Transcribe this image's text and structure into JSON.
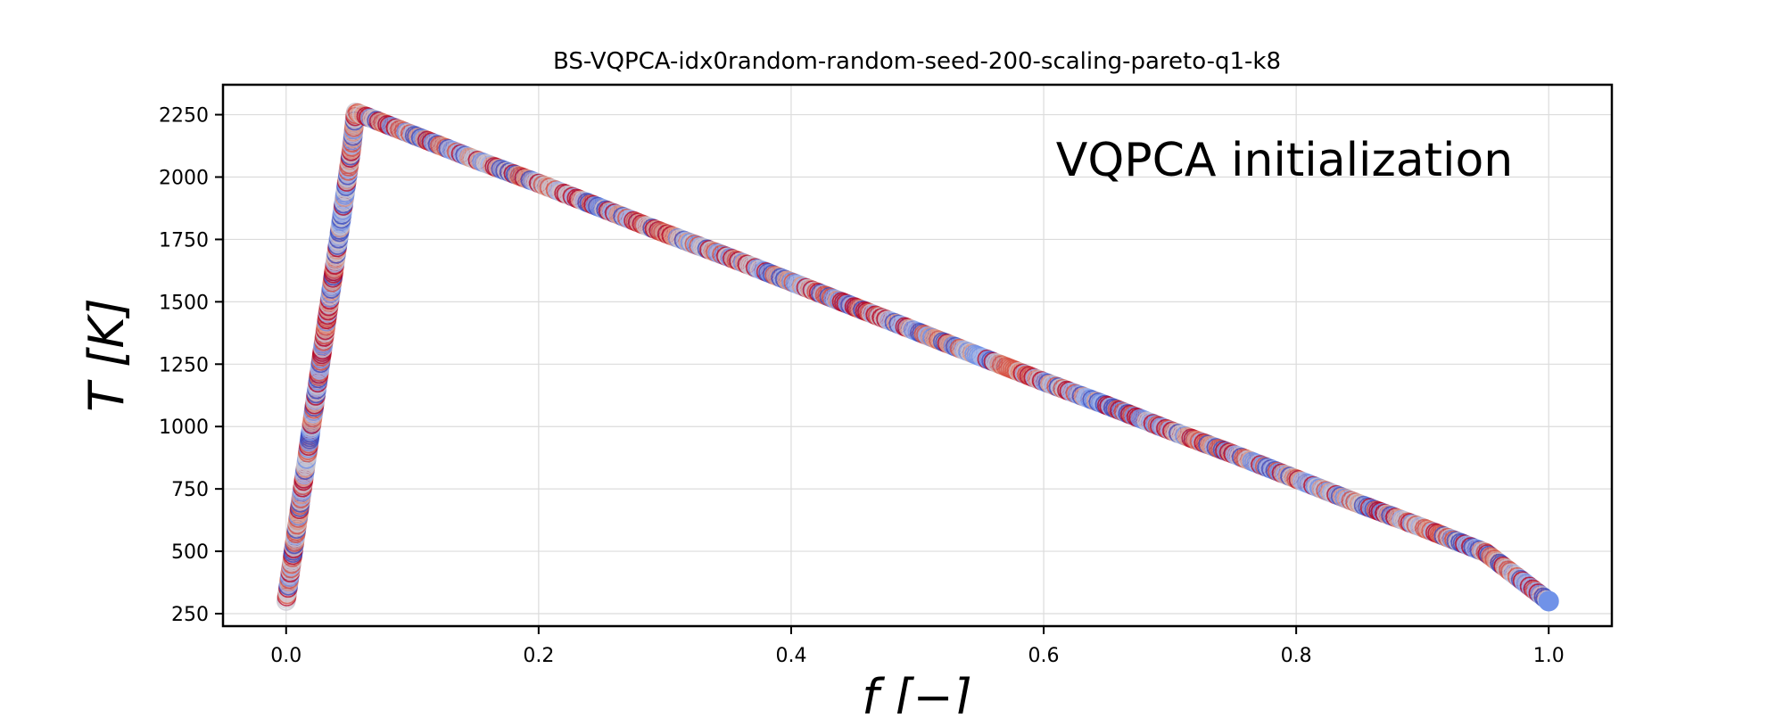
{
  "chart_data": {
    "type": "scatter",
    "title": "BS-VQPCA-idx0random-random-seed-200-scaling-pareto-q1-k8",
    "annotation": "VQPCA initialization",
    "xlabel": "f [−]",
    "ylabel": "T [K]",
    "xlim": [
      -0.05,
      1.05
    ],
    "ylim": [
      200,
      2370
    ],
    "xticks": [
      0.0,
      0.2,
      0.4,
      0.6,
      0.8,
      1.0
    ],
    "xtick_labels": [
      "0.0",
      "0.2",
      "0.4",
      "0.6",
      "0.8",
      "1.0"
    ],
    "yticks": [
      250,
      500,
      750,
      1000,
      1250,
      1500,
      1750,
      2000,
      2250
    ],
    "ytick_labels": [
      "250",
      "500",
      "750",
      "1000",
      "1250",
      "1500",
      "1750",
      "2000",
      "2250"
    ],
    "grid": true,
    "colormap": "coolwarm",
    "colors": [
      "#b40426",
      "#d65244",
      "#dd9a86",
      "#c8c6cf",
      "#9cb4ee",
      "#7092e8",
      "#3b4cc0"
    ],
    "series": [
      {
        "x": [
          0.0,
          0.004,
          0.008,
          0.012,
          0.016,
          0.02,
          0.024,
          0.028,
          0.032,
          0.036,
          0.04,
          0.044,
          0.048,
          0.052,
          0.055,
          0.06,
          0.1,
          0.15,
          0.2,
          0.25,
          0.3,
          0.35,
          0.4,
          0.45,
          0.5,
          0.55,
          0.6,
          0.65,
          0.7,
          0.75,
          0.8,
          0.85,
          0.9,
          0.95,
          1.0
        ],
        "y": [
          300,
          440,
          580,
          720,
          860,
          1000,
          1140,
          1280,
          1420,
          1560,
          1700,
          1840,
          1980,
          2120,
          2260,
          2250,
          2170,
          2070,
          1975,
          1875,
          1775,
          1680,
          1580,
          1480,
          1380,
          1280,
          1180,
          1085,
          985,
          890,
          790,
          690,
          595,
          495,
          300
        ]
      }
    ]
  }
}
